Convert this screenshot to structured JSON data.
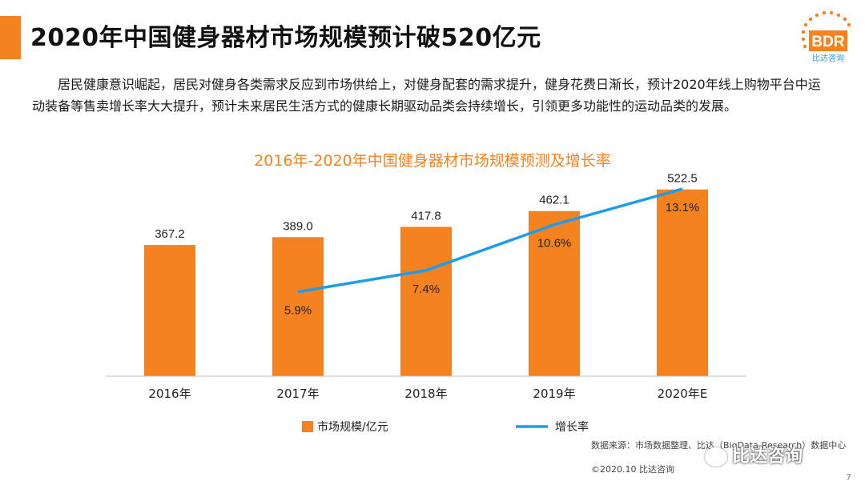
{
  "slide": {
    "title": "2020年中国健身器材市场规模预计破520亿元",
    "logo_text": "BDR",
    "logo_subtext": "比达咨询",
    "paragraph": "居民健康意识崛起，居民对健身各类需求反应到市场供给上，对健身配套的需求提升，健身花费日渐长，预计2020年线上购物平台中运动装备等售卖增长率大大提升，预计未来居民生活方式的健康长期驱动品类会持续增长，引领更多功能性的运动品类的发展。",
    "source": "数据来源：市场数据整理、比达（BigData-Research）数据中心",
    "copyright": "©2020.10 比达咨询",
    "watermark": "比达咨询",
    "page_number": "7"
  },
  "colors": {
    "accent": "#f58220",
    "bar": "#f58220",
    "line": "#1e9be9"
  },
  "chart_data": {
    "type": "bar",
    "title": "2016年-2020年中国健身器材市场规模预测及增长率",
    "categories": [
      "2016年",
      "2017年",
      "2018年",
      "2019年",
      "2020年E"
    ],
    "series": [
      {
        "name": "市场规模/亿元",
        "type": "bar",
        "values": [
          367.2,
          389.0,
          417.8,
          462.1,
          522.5
        ],
        "labels": [
          "367.2",
          "389.0",
          "417.8",
          "462.1",
          "522.5"
        ]
      },
      {
        "name": "增长率",
        "type": "line",
        "values": [
          null,
          5.9,
          7.4,
          10.6,
          13.1
        ],
        "labels": [
          "",
          "5.9%",
          "7.4%",
          "10.6%",
          "13.1%"
        ]
      }
    ],
    "y_range_bar": [
      0,
      560
    ],
    "y_range_line": [
      0,
      14
    ],
    "legend_position": "bottom",
    "grid": false
  }
}
